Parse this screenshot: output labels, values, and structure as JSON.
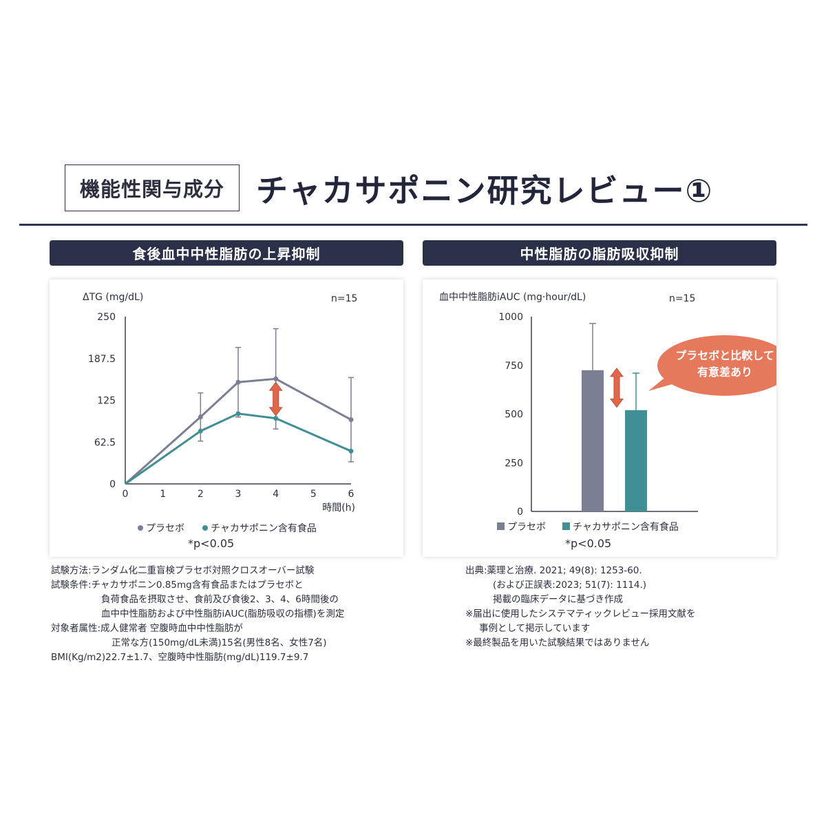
{
  "header": {
    "tag": "機能性関与成分",
    "title": "チャカサポニン研究レビュー①"
  },
  "colors": {
    "navy": "#2b3049",
    "placebo": "#7b7f94",
    "test": "#3f8f94",
    "arrow": "#e0674a",
    "callout": "#e6785c"
  },
  "left_panel": {
    "heading": "食後血中中性脂肪の上昇抑制",
    "n_label": "n=15",
    "significance": "*p<0.05"
  },
  "right_panel": {
    "heading": "中性脂肪の脂肪吸収抑制",
    "n_label": "n=15",
    "significance": "*p<0.05",
    "callout": [
      "プラセボと比較して",
      "有意差あり"
    ]
  },
  "chart_data": [
    {
      "type": "line",
      "ylabel": "ΔTG (mg/dL)",
      "xlabel": "時間(h)",
      "ylim": [
        0,
        250
      ],
      "xlim": [
        0,
        6
      ],
      "y_ticks": [
        "0",
        "62.5",
        "125",
        "187.5",
        "250"
      ],
      "x_ticks": [
        "0",
        "1",
        "2",
        "3",
        "4",
        "5",
        "6"
      ],
      "series": [
        {
          "name": "プラセボ",
          "x": [
            0,
            2,
            3,
            4,
            6
          ],
          "y": [
            0,
            100,
            152,
            157,
            96
          ],
          "err": [
            0,
            36,
            52,
            75,
            63
          ]
        },
        {
          "name": "チャカサポニン含有食品",
          "x": [
            0,
            2,
            3,
            4,
            6
          ],
          "y": [
            0,
            79,
            105,
            98,
            49
          ],
          "err": [
            0,
            0,
            0,
            0,
            0
          ]
        }
      ],
      "legend": "bottom",
      "grid": false
    },
    {
      "type": "bar",
      "ylabel": "血中中性脂肪iAUC (mg·hour/dL)",
      "ylim": [
        0,
        1000
      ],
      "y_ticks": [
        "0",
        "250",
        "500",
        "750",
        "1000"
      ],
      "categories": [
        "プラセボ",
        "チャカサポニン含有食品"
      ],
      "values": [
        725,
        520
      ],
      "err": [
        240,
        190
      ],
      "legend": "bottom",
      "grid": false
    }
  ],
  "notes_left": [
    "試験方法:ランダム化二重盲検プラセボ対照クロスオーバー試験",
    "試験条件:チャカサポニン0.85mg含有食品またはプラセボと",
    "負荷食品を摂取させ、食前及び食後2、3、4、6時間後の",
    "血中中性脂肪および中性脂肪iAUC(脂肪吸収の指標)を測定",
    "対象者属性:成人健常者 空腹時血中中性脂肪が",
    "正常な方(150mg/dL未満)15名(男性8名、女性7名)",
    "BMI(Kg/m2)22.7±1.7、空腹時中性脂肪(mg/dL)119.7±9.7"
  ],
  "notes_right": [
    "出典:薬理と治療. 2021; 49(8): 1253-60.",
    "(および正誤表:2023; 51(7): 1114.)",
    "掲載の臨床データに基づき作成",
    "※届出に使用したシステマティックレビュー採用文献を",
    "事例として掲示しています",
    "※最終製品を用いた試験結果ではありません"
  ]
}
